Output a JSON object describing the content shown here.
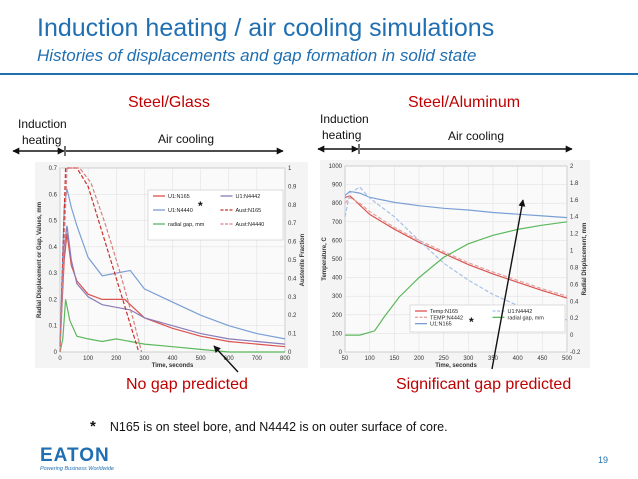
{
  "header": {
    "title": "Induction heating / air cooling  simulations",
    "subtitle": "Histories of displacements and gap formation in solid state"
  },
  "colors": {
    "accent": "#1f6fb2",
    "highlight": "#c00000"
  },
  "panels": {
    "left": {
      "title": "Steel/Glass",
      "induction_label_1": "Induction",
      "induction_label_2": "heating",
      "cooling_label": "Air cooling",
      "conclusion": "No gap predicted",
      "star": "*"
    },
    "right": {
      "title": "Steel/Aluminum",
      "induction_label_1": "Induction",
      "induction_label_2": "heating",
      "cooling_label": "Air cooling",
      "conclusion": "Significant gap predicted",
      "star": "*"
    }
  },
  "footnote": {
    "star": "*",
    "text": "N165 is on steel bore, and N4442 is on outer surface of core."
  },
  "footer": {
    "logo": "EATON",
    "tagline": "Powering Business Worldwide",
    "page": "19"
  },
  "chart_data": [
    {
      "type": "line",
      "xlabel": "Time, seconds",
      "ylabel": "Radial Displacement or Gap, Values, mm",
      "y2label": "Austenite Fraction",
      "xlim": [
        0,
        800
      ],
      "ylim": [
        0,
        0.7
      ],
      "y2lim": [
        0,
        1
      ],
      "xticks": [
        "0",
        "100",
        "200",
        "300",
        "400",
        "500",
        "600",
        "700",
        "800"
      ],
      "yticks": [
        "0",
        "0.1",
        "0.2",
        "0.3",
        "0.4",
        "0.5",
        "0.6",
        "0.7"
      ],
      "y2ticks": [
        "0",
        "0.1",
        "0.2",
        "0.3",
        "0.4",
        "0.5",
        "0.6",
        "0.7",
        "0.8",
        "0.9",
        "1"
      ],
      "legend_position": "top-right",
      "series": [
        {
          "name": "U1:N165",
          "color": "#d9534f",
          "dash": "none",
          "axis": "left",
          "x": [
            0,
            15,
            25,
            40,
            60,
            100,
            150,
            200,
            230,
            260,
            300,
            400,
            500,
            600,
            700,
            800
          ],
          "y": [
            0.02,
            0.35,
            0.45,
            0.33,
            0.27,
            0.22,
            0.2,
            0.2,
            0.2,
            0.17,
            0.13,
            0.09,
            0.06,
            0.04,
            0.03,
            0.02
          ]
        },
        {
          "name": "U1:N4440",
          "color": "#7b9fd4",
          "dash": "none",
          "axis": "left",
          "x": [
            0,
            15,
            25,
            40,
            60,
            100,
            150,
            200,
            250,
            300,
            400,
            500,
            600,
            700,
            800
          ],
          "y": [
            0.03,
            0.55,
            0.62,
            0.55,
            0.48,
            0.36,
            0.29,
            0.3,
            0.31,
            0.24,
            0.19,
            0.14,
            0.1,
            0.07,
            0.05
          ]
        },
        {
          "name": "radial gap, mm",
          "color": "#5cb85c",
          "dash": "none",
          "axis": "left",
          "x": [
            0,
            10,
            20,
            35,
            60,
            100,
            150,
            200,
            250,
            300,
            400,
            500,
            600,
            700,
            800
          ],
          "y": [
            0.0,
            0.05,
            0.2,
            0.12,
            0.06,
            0.05,
            0.04,
            0.05,
            0.04,
            0.03,
            0.02,
            0.01,
            0.0,
            0.0,
            0.0
          ]
        },
        {
          "name": "U1:N4442",
          "color": "#8b7bb8",
          "dash": "none",
          "axis": "left",
          "x": [
            0,
            15,
            25,
            40,
            60,
            100,
            150,
            200,
            250,
            300,
            400,
            500,
            600,
            700,
            800
          ],
          "y": [
            0.02,
            0.4,
            0.48,
            0.35,
            0.26,
            0.21,
            0.18,
            0.17,
            0.16,
            0.13,
            0.1,
            0.07,
            0.05,
            0.04,
            0.03
          ]
        },
        {
          "name": "Aust:N165",
          "color": "#c9302c",
          "dash": "4,2",
          "axis": "right",
          "x": [
            0,
            20,
            60,
            100,
            150,
            200,
            250,
            280
          ],
          "y": [
            0.0,
            1.0,
            1.0,
            0.9,
            0.65,
            0.4,
            0.15,
            0.0
          ]
        },
        {
          "name": "Aust:N4440",
          "color": "#d98080",
          "dash": "4,2",
          "axis": "right",
          "x": [
            0,
            25,
            70,
            110,
            160,
            210,
            260,
            290
          ],
          "y": [
            0.0,
            1.0,
            1.0,
            0.92,
            0.7,
            0.45,
            0.18,
            0.0
          ]
        }
      ]
    },
    {
      "type": "line",
      "xlabel": "Time, seconds",
      "ylabel": "Temperature, C",
      "y2label": "Radial Displacement, mm",
      "xlim": [
        50,
        500
      ],
      "ylim": [
        0,
        1000
      ],
      "y2lim": [
        -0.2,
        2
      ],
      "xticks": [
        "50",
        "100",
        "150",
        "200",
        "250",
        "300",
        "350",
        "400",
        "450",
        "500"
      ],
      "yticks": [
        "0",
        "100",
        "200",
        "300",
        "400",
        "500",
        "600",
        "700",
        "800",
        "900",
        "1000"
      ],
      "y2ticks": [
        "-0.2",
        "0",
        "0.2",
        "0.4",
        "0.6",
        "0.8",
        "1",
        "1.2",
        "1.4",
        "1.6",
        "1.8",
        "2"
      ],
      "legend_position": "bottom-right",
      "series": [
        {
          "name": "Temp:N165",
          "color": "#d9534f",
          "dash": "none",
          "axis": "left",
          "x": [
            50,
            60,
            80,
            100,
            150,
            200,
            250,
            300,
            350,
            400,
            450,
            500
          ],
          "y": [
            830,
            840,
            790,
            740,
            660,
            590,
            530,
            470,
            420,
            375,
            330,
            290
          ]
        },
        {
          "name": "TEMP:N4442",
          "color": "#e8a0a0",
          "dash": "4,2",
          "axis": "left",
          "x": [
            50,
            60,
            80,
            100,
            150,
            200,
            250,
            300,
            350,
            400,
            450,
            500
          ],
          "y": [
            800,
            830,
            800,
            755,
            670,
            600,
            540,
            480,
            430,
            385,
            340,
            300
          ]
        },
        {
          "name": "U1:N165",
          "color": "#7b9fd4",
          "dash": "none",
          "axis": "right",
          "x": [
            50,
            60,
            80,
            100,
            150,
            200,
            250,
            300,
            350,
            400,
            450,
            500
          ],
          "y": [
            1.65,
            1.7,
            1.68,
            1.63,
            1.57,
            1.53,
            1.5,
            1.48,
            1.45,
            1.43,
            1.41,
            1.39
          ]
        },
        {
          "name": "U1:N4442",
          "color": "#a8c0e8",
          "dash": "4,2",
          "axis": "right",
          "x": [
            50,
            60,
            80,
            100,
            150,
            200,
            250,
            300,
            350,
            400,
            450,
            500
          ],
          "y": [
            1.4,
            1.68,
            1.75,
            1.62,
            1.4,
            1.12,
            0.85,
            0.65,
            0.48,
            0.35,
            0.25,
            0.18
          ]
        },
        {
          "name": "radial gap, mm",
          "color": "#5cb85c",
          "dash": "none",
          "axis": "right",
          "x": [
            50,
            80,
            110,
            130,
            160,
            200,
            250,
            300,
            350,
            400,
            450,
            500
          ],
          "y": [
            0.0,
            0.0,
            0.05,
            0.22,
            0.45,
            0.68,
            0.92,
            1.08,
            1.18,
            1.25,
            1.3,
            1.34
          ]
        }
      ]
    }
  ]
}
